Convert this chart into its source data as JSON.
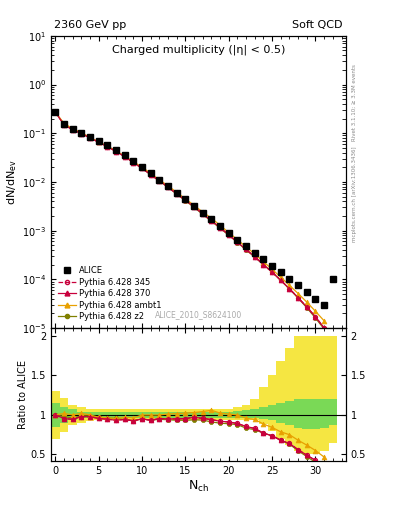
{
  "title_left": "2360 GeV pp",
  "title_right": "Soft QCD",
  "main_title": "Charged multiplicity (|η| < 0.5)",
  "ylabel_main": "dN/dN_{ev}",
  "ylabel_ratio": "Ratio to ALICE",
  "right_label_top": "Rivet 3.1.10; ≥ 3.3M events",
  "right_label_bottom": "mcplots.cern.ch [arXiv:1306.3436]",
  "watermark": "ALICE_2010_S8624100",
  "xlim": [
    -0.5,
    33.5
  ],
  "ylim_main": [
    1e-05,
    10
  ],
  "ylim_ratio": [
    0.42,
    2.1
  ],
  "alice_x": [
    0,
    1,
    2,
    3,
    4,
    5,
    6,
    7,
    8,
    9,
    10,
    11,
    12,
    13,
    14,
    15,
    16,
    17,
    18,
    19,
    20,
    21,
    22,
    23,
    24,
    25,
    26,
    27,
    28,
    29,
    30,
    31,
    32
  ],
  "alice_y": [
    0.27,
    0.155,
    0.125,
    0.1,
    0.082,
    0.068,
    0.056,
    0.045,
    0.035,
    0.027,
    0.02,
    0.015,
    0.011,
    0.0082,
    0.006,
    0.0044,
    0.0032,
    0.0023,
    0.0017,
    0.00125,
    0.0009,
    0.00065,
    0.00048,
    0.00035,
    0.00026,
    0.00019,
    0.00014,
    0.0001,
    7.5e-05,
    5.5e-05,
    4e-05,
    3e-05,
    0.0001
  ],
  "p345_x": [
    0,
    1,
    2,
    3,
    4,
    5,
    6,
    7,
    8,
    9,
    10,
    11,
    12,
    13,
    14,
    15,
    16,
    17,
    18,
    19,
    20,
    21,
    22,
    23,
    24,
    25,
    26,
    27,
    28,
    29,
    30,
    31
  ],
  "p345_y": [
    0.27,
    0.148,
    0.118,
    0.098,
    0.08,
    0.065,
    0.053,
    0.042,
    0.033,
    0.025,
    0.019,
    0.014,
    0.0105,
    0.0078,
    0.0057,
    0.0042,
    0.0031,
    0.0022,
    0.0016,
    0.00115,
    0.00082,
    0.00058,
    0.00041,
    0.00029,
    0.0002,
    0.00014,
    9.5e-05,
    6.4e-05,
    4.2e-05,
    2.7e-05,
    1.7e-05,
    1e-05
  ],
  "p370_x": [
    0,
    1,
    2,
    3,
    4,
    5,
    6,
    7,
    8,
    9,
    10,
    11,
    12,
    13,
    14,
    15,
    16,
    17,
    18,
    19,
    20,
    21,
    22,
    23,
    24,
    25,
    26,
    27,
    28,
    29,
    30,
    31
  ],
  "p370_y": [
    0.27,
    0.148,
    0.118,
    0.098,
    0.08,
    0.065,
    0.053,
    0.042,
    0.033,
    0.025,
    0.019,
    0.014,
    0.0105,
    0.0078,
    0.0057,
    0.0042,
    0.0031,
    0.0022,
    0.0016,
    0.00115,
    0.00082,
    0.00058,
    0.00041,
    0.00029,
    0.0002,
    0.00014,
    9.5e-05,
    6.4e-05,
    4.2e-05,
    2.7e-05,
    1.7e-05,
    1e-05
  ],
  "pambt_x": [
    0,
    1,
    2,
    3,
    4,
    5,
    6,
    7,
    8,
    9,
    10,
    11,
    12,
    13,
    14,
    15,
    16,
    17,
    18,
    19,
    20,
    21,
    22,
    23,
    24,
    25,
    26,
    27,
    28,
    29,
    30,
    31
  ],
  "pambt_y": [
    0.27,
    0.158,
    0.125,
    0.102,
    0.082,
    0.066,
    0.054,
    0.043,
    0.034,
    0.026,
    0.02,
    0.015,
    0.011,
    0.0083,
    0.0061,
    0.0045,
    0.0033,
    0.0024,
    0.0018,
    0.00128,
    0.00091,
    0.00065,
    0.00046,
    0.00033,
    0.00023,
    0.00016,
    0.00011,
    7.5e-05,
    5.1e-05,
    3.4e-05,
    2.2e-05,
    1.4e-05
  ],
  "pz2_x": [
    0,
    1,
    2,
    3,
    4,
    5,
    6,
    7,
    8,
    9,
    10,
    11,
    12,
    13,
    14,
    15,
    16,
    17,
    18,
    19,
    20,
    21,
    22,
    23,
    24,
    25,
    26,
    27,
    28,
    29,
    30,
    31
  ],
  "pz2_y": [
    0.27,
    0.152,
    0.12,
    0.099,
    0.081,
    0.066,
    0.054,
    0.043,
    0.033,
    0.025,
    0.019,
    0.014,
    0.0104,
    0.0077,
    0.0056,
    0.0041,
    0.003,
    0.00215,
    0.00155,
    0.00112,
    0.0008,
    0.00057,
    0.0004,
    0.000285,
    0.0002,
    0.00014,
    9.5e-05,
    6.3e-05,
    4.1e-05,
    2.6e-05,
    1.6e-05,
    9.5e-06
  ],
  "color_345": "#c8003c",
  "color_370": "#c8003c",
  "color_ambt": "#e8a000",
  "color_z2": "#808000",
  "color_alice": "#000000",
  "ratio_345": [
    1.0,
    0.955,
    0.944,
    0.98,
    0.976,
    0.956,
    0.946,
    0.933,
    0.943,
    0.926,
    0.95,
    0.933,
    0.955,
    0.951,
    0.95,
    0.955,
    0.969,
    0.957,
    0.941,
    0.92,
    0.911,
    0.892,
    0.854,
    0.829,
    0.769,
    0.737,
    0.679,
    0.64,
    0.56,
    0.491,
    0.425,
    0.333
  ],
  "ratio_370": [
    1.0,
    0.955,
    0.944,
    0.98,
    0.976,
    0.956,
    0.946,
    0.933,
    0.943,
    0.926,
    0.95,
    0.933,
    0.955,
    0.951,
    0.95,
    0.955,
    0.969,
    0.957,
    0.941,
    0.92,
    0.911,
    0.892,
    0.854,
    0.829,
    0.769,
    0.737,
    0.679,
    0.64,
    0.56,
    0.491,
    0.425,
    0.333
  ],
  "ratio_ambt": [
    1.0,
    1.019,
    1.0,
    1.02,
    1.0,
    0.971,
    0.964,
    0.956,
    0.971,
    0.963,
    1.0,
    1.0,
    1.0,
    1.012,
    1.017,
    1.023,
    1.031,
    1.043,
    1.059,
    1.024,
    1.011,
    1.0,
    0.958,
    0.943,
    0.885,
    0.842,
    0.786,
    0.75,
    0.68,
    0.618,
    0.55,
    0.467
  ],
  "ratio_z2": [
    1.0,
    0.981,
    0.96,
    0.99,
    0.988,
    0.971,
    0.964,
    0.956,
    0.943,
    0.926,
    0.95,
    0.933,
    0.945,
    0.939,
    0.933,
    0.932,
    0.938,
    0.935,
    0.912,
    0.896,
    0.889,
    0.877,
    0.833,
    0.814,
    0.769,
    0.737,
    0.679,
    0.63,
    0.547,
    0.473,
    0.4,
    0.317
  ],
  "band_x_edges": [
    -0.5,
    0.5,
    1.5,
    2.5,
    3.5,
    4.5,
    5.5,
    6.5,
    7.5,
    8.5,
    9.5,
    10.5,
    11.5,
    12.5,
    13.5,
    14.5,
    15.5,
    16.5,
    17.5,
    18.5,
    19.5,
    20.5,
    21.5,
    22.5,
    23.5,
    24.5,
    25.5,
    26.5,
    27.5,
    28.5,
    29.5,
    30.5,
    31.5,
    32.5
  ],
  "band_yellow_lo": [
    0.7,
    0.78,
    0.87,
    0.9,
    0.92,
    0.93,
    0.93,
    0.93,
    0.93,
    0.93,
    0.93,
    0.93,
    0.93,
    0.93,
    0.93,
    0.93,
    0.93,
    0.93,
    0.93,
    0.93,
    0.93,
    0.93,
    0.93,
    0.93,
    0.88,
    0.8,
    0.7,
    0.62,
    0.55,
    0.5,
    0.5,
    0.55,
    0.65
  ],
  "band_yellow_hi": [
    1.3,
    1.22,
    1.13,
    1.1,
    1.08,
    1.07,
    1.07,
    1.07,
    1.07,
    1.07,
    1.07,
    1.07,
    1.07,
    1.07,
    1.07,
    1.07,
    1.07,
    1.07,
    1.07,
    1.07,
    1.08,
    1.1,
    1.13,
    1.2,
    1.35,
    1.5,
    1.68,
    1.85,
    2.0,
    2.0,
    2.0,
    2.0,
    2.0
  ],
  "band_green_lo": [
    0.85,
    0.9,
    0.93,
    0.96,
    0.965,
    0.965,
    0.965,
    0.965,
    0.965,
    0.965,
    0.965,
    0.965,
    0.965,
    0.965,
    0.965,
    0.965,
    0.965,
    0.965,
    0.965,
    0.965,
    0.965,
    0.965,
    0.965,
    0.965,
    0.95,
    0.93,
    0.9,
    0.87,
    0.84,
    0.82,
    0.82,
    0.84,
    0.87
  ],
  "band_green_hi": [
    1.15,
    1.1,
    1.07,
    1.04,
    1.035,
    1.035,
    1.035,
    1.035,
    1.035,
    1.035,
    1.035,
    1.035,
    1.035,
    1.035,
    1.035,
    1.035,
    1.035,
    1.035,
    1.035,
    1.035,
    1.04,
    1.05,
    1.06,
    1.08,
    1.1,
    1.12,
    1.15,
    1.18,
    1.2,
    1.2,
    1.2,
    1.2,
    1.2
  ]
}
